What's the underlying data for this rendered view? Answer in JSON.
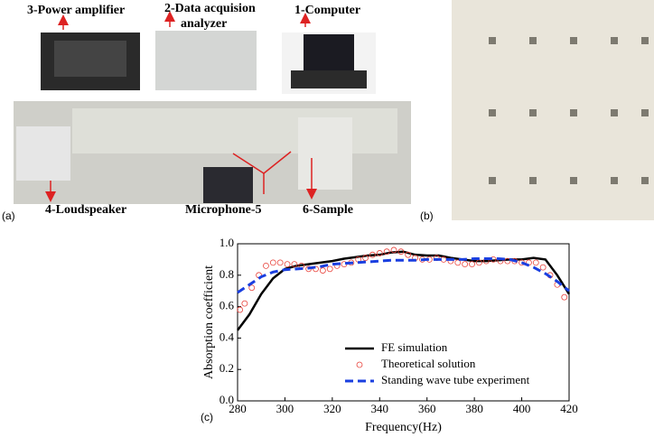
{
  "figure_a": {
    "panel_label": "(a)",
    "power_amplifier": "3-Power amplifier",
    "analyzer": [
      "2-Data acquision",
      "analyzer"
    ],
    "computer": "1-Computer",
    "loudspeaker": "4-Loudspeaker",
    "microphone": "Microphone-5",
    "sample": "6-Sample"
  },
  "figure_b": {
    "panel_label": "(b)"
  },
  "chart_data": {
    "type": "line",
    "panel_label": "(c)",
    "x_label": "Frequency(Hz)",
    "y_label": "Absorption coefficient",
    "x": [
      280,
      285,
      290,
      295,
      300,
      305,
      310,
      315,
      320,
      325,
      330,
      335,
      340,
      345,
      350,
      355,
      360,
      365,
      370,
      375,
      380,
      385,
      390,
      395,
      400,
      405,
      410,
      415,
      420
    ],
    "xlim": [
      280,
      420
    ],
    "xticks": [
      280,
      300,
      320,
      340,
      360,
      380,
      400,
      420
    ],
    "ylim": [
      0,
      1
    ],
    "yticks": [
      {
        "value": 0,
        "label": "0.0"
      },
      0.2,
      0.4,
      0.6,
      0.8,
      {
        "value": 1,
        "label": "1.0"
      }
    ],
    "legend": "lower right",
    "series": [
      {
        "name": "FE simulation",
        "color": "#000000",
        "style": "solid",
        "values": [
          0.45,
          0.55,
          0.68,
          0.78,
          0.84,
          0.86,
          0.87,
          0.88,
          0.89,
          0.905,
          0.915,
          0.925,
          0.93,
          0.945,
          0.95,
          0.93,
          0.925,
          0.925,
          0.91,
          0.9,
          0.89,
          0.89,
          0.895,
          0.9,
          0.9,
          0.91,
          0.9,
          0.8,
          0.68
        ]
      },
      {
        "name": "Theoretical solution",
        "color": "#e8413a",
        "style": "circles",
        "x": [
          281,
          283,
          286,
          289,
          292,
          295,
          298,
          301,
          304,
          307,
          310,
          313,
          316,
          319,
          322,
          325,
          328,
          331,
          334,
          337,
          340,
          343,
          346,
          349,
          352,
          355,
          358,
          361,
          364,
          367,
          370,
          373,
          376,
          379,
          382,
          385,
          388,
          391,
          394,
          397,
          400,
          403,
          406,
          409,
          412,
          415,
          418
        ],
        "values": [
          0.58,
          0.62,
          0.72,
          0.8,
          0.86,
          0.88,
          0.88,
          0.87,
          0.87,
          0.86,
          0.84,
          0.84,
          0.83,
          0.84,
          0.86,
          0.87,
          0.88,
          0.9,
          0.91,
          0.93,
          0.94,
          0.95,
          0.96,
          0.95,
          0.93,
          0.91,
          0.9,
          0.9,
          0.91,
          0.9,
          0.89,
          0.88,
          0.87,
          0.87,
          0.88,
          0.89,
          0.9,
          0.89,
          0.89,
          0.89,
          0.88,
          0.88,
          0.88,
          0.85,
          0.8,
          0.74,
          0.66
        ]
      },
      {
        "name": "Standing wave tube experiment",
        "color": "#1a3fe0",
        "style": "dashed",
        "values": [
          0.69,
          0.74,
          0.79,
          0.82,
          0.835,
          0.84,
          0.845,
          0.855,
          0.87,
          0.875,
          0.88,
          0.885,
          0.89,
          0.895,
          0.895,
          0.895,
          0.9,
          0.9,
          0.9,
          0.9,
          0.905,
          0.905,
          0.905,
          0.9,
          0.88,
          0.85,
          0.81,
          0.76,
          0.7
        ]
      }
    ]
  }
}
